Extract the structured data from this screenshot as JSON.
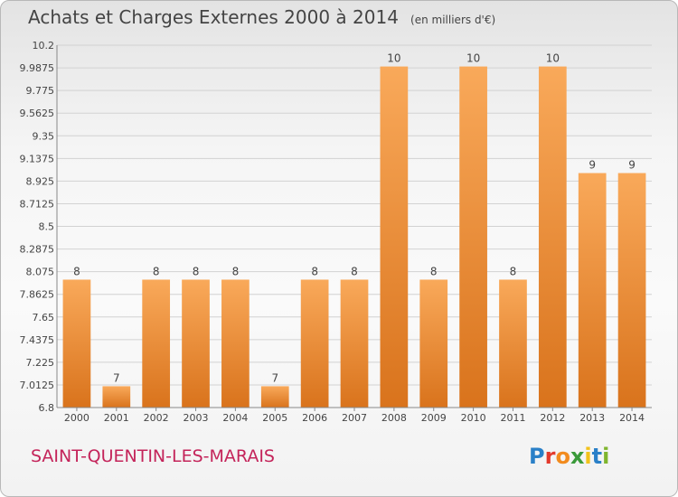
{
  "title": "Achats et Charges Externes 2000 à 2014",
  "unit": "(en milliers d'€)",
  "commune": "SAINT-QUENTIN-LES-MARAIS",
  "logo": {
    "letters": [
      "P",
      "r",
      "o",
      "x",
      "i",
      "t",
      "i"
    ],
    "colors": [
      "#2a80c8",
      "#e33a2c",
      "#f28b1e",
      "#3a9a3a",
      "#f2c21b",
      "#2a80c8",
      "#7fb52e"
    ]
  },
  "colors": {
    "bar_light": "#f9a95a",
    "bar_dark": "#d9731c",
    "commune": "#c4245a"
  },
  "chart_data": {
    "type": "bar",
    "categories": [
      "2000",
      "2001",
      "2002",
      "2003",
      "2004",
      "2005",
      "2006",
      "2007",
      "2008",
      "2009",
      "2010",
      "2011",
      "2012",
      "2013",
      "2014"
    ],
    "values": [
      8,
      7,
      8,
      8,
      8,
      7,
      8,
      8,
      10,
      8,
      10,
      8,
      10,
      9,
      9
    ],
    "data_labels": [
      "8",
      "7",
      "8",
      "8",
      "8",
      "7",
      "8",
      "8",
      "10",
      "8",
      "10",
      "8",
      "10",
      "9",
      "9"
    ],
    "ylim": [
      6.8,
      10.2
    ],
    "yticks": [
      "6.8",
      "7.0125",
      "7.225",
      "7.4375",
      "7.65",
      "7.8625",
      "8.075",
      "8.2875",
      "8.5",
      "8.7125",
      "8.925",
      "9.1375",
      "9.35",
      "9.5625",
      "9.775",
      "9.9875",
      "10.2"
    ],
    "xlabel": "",
    "ylabel": "",
    "grid": true
  }
}
